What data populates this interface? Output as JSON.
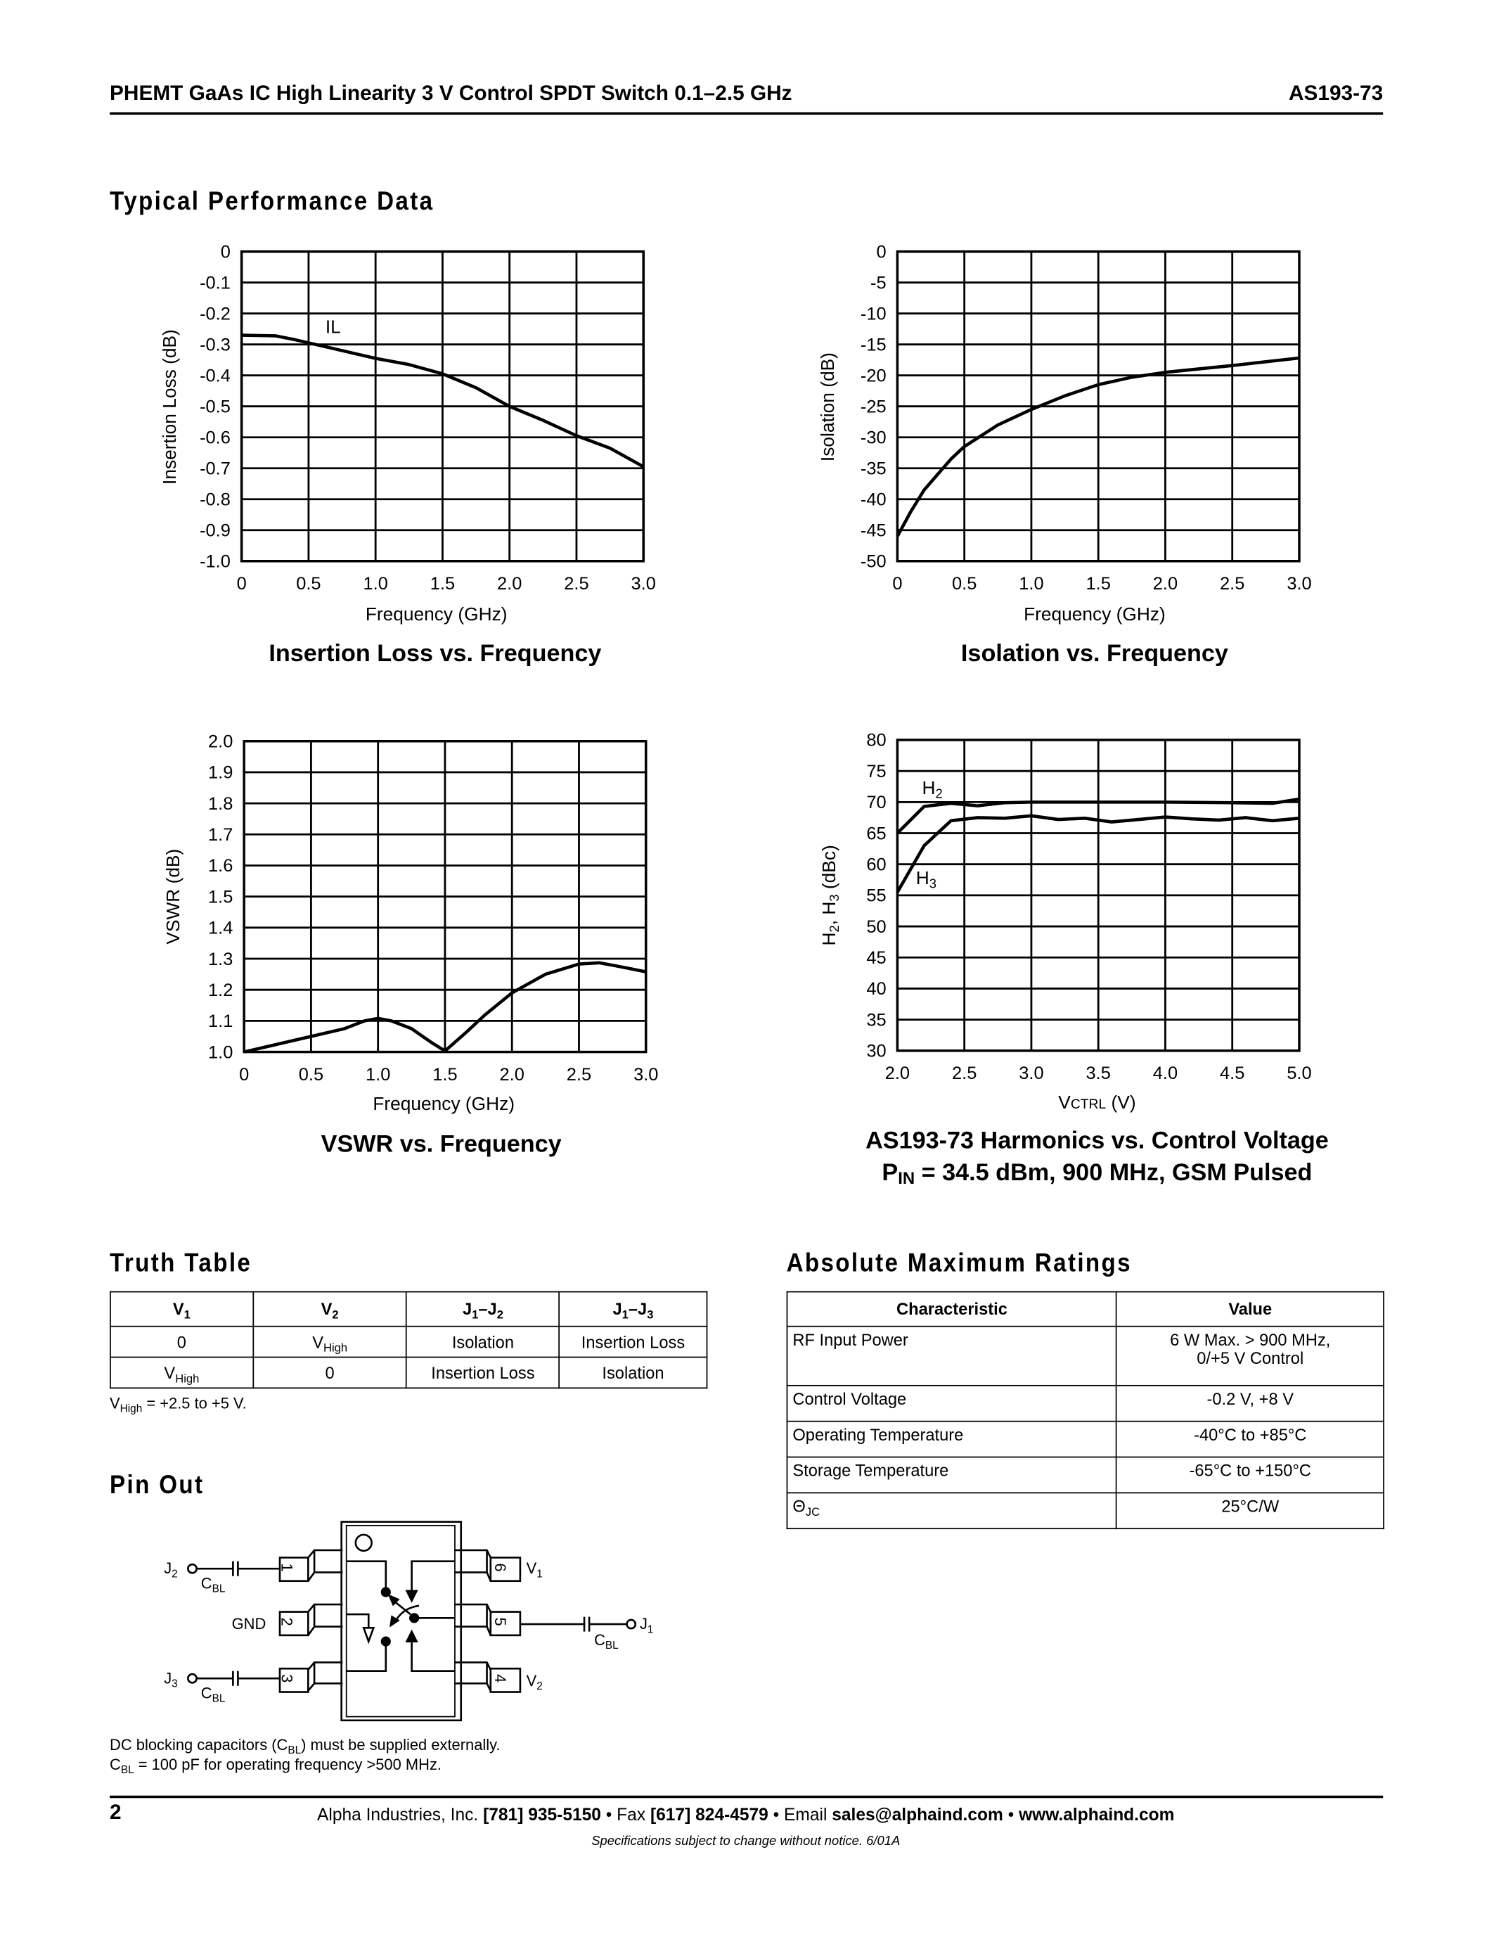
{
  "header": {
    "title": "PHEMT GaAs IC High Linearity 3 V Control SPDT Switch 0.1–2.5 GHz",
    "part_number": "AS193-73"
  },
  "sections": {
    "performance": "Typical Performance Data",
    "truth_table": "Truth Table",
    "abs_max": "Absolute Maximum Ratings",
    "pin_out": "Pin Out"
  },
  "chart_data": [
    {
      "type": "line",
      "title": "Insertion Loss vs. Frequency",
      "xlabel": "Frequency (GHz)",
      "ylabel": "Insertion Loss (dB)",
      "xlim": [
        0,
        3.0
      ],
      "ylim": [
        -1.0,
        0
      ],
      "xticks": [
        "0",
        "0.5",
        "1.0",
        "1.5",
        "2.0",
        "2.5",
        "3.0"
      ],
      "yticks": [
        "0",
        "-0.1",
        "-0.2",
        "-0.3",
        "-0.4",
        "-0.5",
        "-0.6",
        "-0.7",
        "-0.8",
        "-0.9",
        "-1.0"
      ],
      "grid": true,
      "annotations": [
        "IL"
      ],
      "series": [
        {
          "name": "IL",
          "x": [
            0,
            0.25,
            0.4,
            0.5,
            0.75,
            1.0,
            1.25,
            1.5,
            1.75,
            2.0,
            2.25,
            2.5,
            2.75,
            3.0
          ],
          "y": [
            -0.27,
            -0.272,
            -0.285,
            -0.295,
            -0.32,
            -0.345,
            -0.365,
            -0.395,
            -0.44,
            -0.5,
            -0.545,
            -0.595,
            -0.635,
            -0.695
          ]
        }
      ]
    },
    {
      "type": "line",
      "title": "Isolation vs. Frequency",
      "xlabel": "Frequency (GHz)",
      "ylabel": "Isolation (dB)",
      "xlim": [
        0,
        3.0
      ],
      "ylim": [
        -50,
        0
      ],
      "xticks": [
        "0",
        "0.5",
        "1.0",
        "1.5",
        "2.0",
        "2.5",
        "3.0"
      ],
      "yticks": [
        "0",
        "-5",
        "-10",
        "-15",
        "-20",
        "-25",
        "-30",
        "-35",
        "-40",
        "-45",
        "-50"
      ],
      "grid": true,
      "series": [
        {
          "x": [
            0,
            0.1,
            0.2,
            0.3,
            0.4,
            0.5,
            0.75,
            1.0,
            1.25,
            1.5,
            1.75,
            2.0,
            2.5,
            3.0
          ],
          "y": [
            -46,
            -42,
            -38.5,
            -36,
            -33.5,
            -31.5,
            -28,
            -25.5,
            -23.3,
            -21.5,
            -20.3,
            -19.5,
            -18.4,
            -17.2
          ]
        }
      ]
    },
    {
      "type": "line",
      "title": "VSWR vs. Frequency",
      "xlabel": "Frequency (GHz)",
      "ylabel": "VSWR (dB)",
      "xlim": [
        0,
        3.0
      ],
      "ylim": [
        1.0,
        2.0
      ],
      "xticks": [
        "0",
        "0.5",
        "1.0",
        "1.5",
        "2.0",
        "2.5",
        "3.0"
      ],
      "yticks": [
        "2.0",
        "1.9",
        "1.8",
        "1.7",
        "1.6",
        "1.5",
        "1.4",
        "1.3",
        "1.2",
        "1.1",
        "1.0"
      ],
      "grid": true,
      "series": [
        {
          "x": [
            0,
            0.25,
            0.5,
            0.75,
            0.9,
            1.0,
            1.1,
            1.25,
            1.4,
            1.5,
            1.65,
            1.8,
            2.0,
            2.25,
            2.5,
            2.65,
            2.8,
            3.0
          ],
          "y": [
            1.0,
            1.025,
            1.05,
            1.075,
            1.1,
            1.108,
            1.1,
            1.075,
            1.03,
            1.003,
            1.06,
            1.12,
            1.19,
            1.25,
            1.283,
            1.287,
            1.275,
            1.258
          ]
        }
      ]
    },
    {
      "type": "line",
      "title": "AS193-73 Harmonics vs. Control Voltage",
      "subtitle": {
        "p": "P",
        "sub": "IN",
        "rest": " = 34.5 dBm, 900 MHz, GSM Pulsed"
      },
      "xlabel": {
        "v": "V",
        "ctrl": "CTRL",
        "unit": " (V)"
      },
      "ylabel": {
        "h": "H",
        "s2": "2",
        "mid": ", H",
        "s3": "3",
        "unit": " (dBc)"
      },
      "xlim": [
        2.0,
        5.0
      ],
      "ylim": [
        30,
        80
      ],
      "xticks": [
        "2.0",
        "2.5",
        "3.0",
        "3.5",
        "4.0",
        "4.5",
        "5.0"
      ],
      "yticks": [
        "80",
        "75",
        "70",
        "65",
        "60",
        "55",
        "50",
        "45",
        "40",
        "35",
        "30"
      ],
      "grid": true,
      "series": [
        {
          "name": "H2",
          "x": [
            2.0,
            2.2,
            2.4,
            2.6,
            2.8,
            3.0,
            3.5,
            4.0,
            4.5,
            4.8,
            5.0
          ],
          "y": [
            65,
            69.3,
            69.8,
            69.4,
            69.9,
            70,
            70,
            70,
            69.9,
            69.8,
            70.5
          ]
        },
        {
          "name": "H3",
          "x": [
            2.0,
            2.2,
            2.4,
            2.6,
            2.8,
            3.0,
            3.2,
            3.4,
            3.6,
            3.8,
            4.0,
            4.2,
            4.4,
            4.6,
            4.8,
            5.0
          ],
          "y": [
            55.5,
            63,
            67,
            67.5,
            67.4,
            67.8,
            67.2,
            67.4,
            66.8,
            67.2,
            67.6,
            67.3,
            67.1,
            67.5,
            67.0,
            67.4
          ]
        }
      ],
      "legend_labels": [
        {
          "h": "H",
          "s": "2"
        },
        {
          "h": "H",
          "s": "3"
        }
      ]
    }
  ],
  "truth_table": {
    "headers": [
      {
        "b": "V",
        "s": "1"
      },
      {
        "b": "V",
        "s": "2"
      },
      {
        "b": "J",
        "s": "1",
        "b2": "–J",
        "s2": "2"
      },
      {
        "b": "J",
        "s": "1",
        "b2": "–J",
        "s2": "3"
      }
    ],
    "rows": [
      [
        {
          "b": "0"
        },
        {
          "b": "V",
          "s": "High"
        },
        {
          "b": "Isolation"
        },
        {
          "b": "Insertion Loss"
        }
      ],
      [
        {
          "b": "V",
          "s": "High"
        },
        {
          "b": "0"
        },
        {
          "b": "Insertion Loss"
        },
        {
          "b": "Isolation"
        }
      ]
    ],
    "note": {
      "b": "V",
      "s": "High",
      "rest": " = +2.5 to +5 V."
    }
  },
  "abs_max": {
    "headers": [
      "Characteristic",
      "Value"
    ],
    "rows": [
      {
        "c": "RF Input Power",
        "v": "6 W Max. > 900 MHz,",
        "v2": "0/+5 V Control"
      },
      {
        "c": "Control Voltage",
        "v": "-0.2 V, +8 V"
      },
      {
        "c": "Operating Temperature",
        "v": "-40°C to +85°C"
      },
      {
        "c": "Storage Temperature",
        "v": "-65°C to +150°C"
      },
      {
        "c": "Θ",
        "cs": "JC",
        "v": "25°C/W"
      }
    ]
  },
  "pin_out": {
    "pins": [
      "1",
      "2",
      "3",
      "4",
      "5",
      "6"
    ],
    "labels": {
      "j": "J",
      "c": "C",
      "bl": "BL",
      "gnd": "GND",
      "v": "V",
      "one": "1",
      "two": "2",
      "three": "3"
    },
    "note1": {
      "a": "DC blocking capacitors (C",
      "s": "BL",
      "b": ") must be supplied externally."
    },
    "note2": {
      "a": "C",
      "s": "BL",
      "b": " = 100 pF for operating frequency >500 MHz."
    }
  },
  "footer": {
    "page": "2",
    "company": "Alpha Industries, Inc. ",
    "phone": "[781] 935-5150",
    "fax_label": " • Fax ",
    "fax": "[617] 824-4579",
    "email_label": " • Email ",
    "email": "sales@alphaind.com",
    "sep": " • ",
    "web": "www.alphaind.com",
    "disclaimer": "Specifications subject to change without notice.  6/01A"
  }
}
